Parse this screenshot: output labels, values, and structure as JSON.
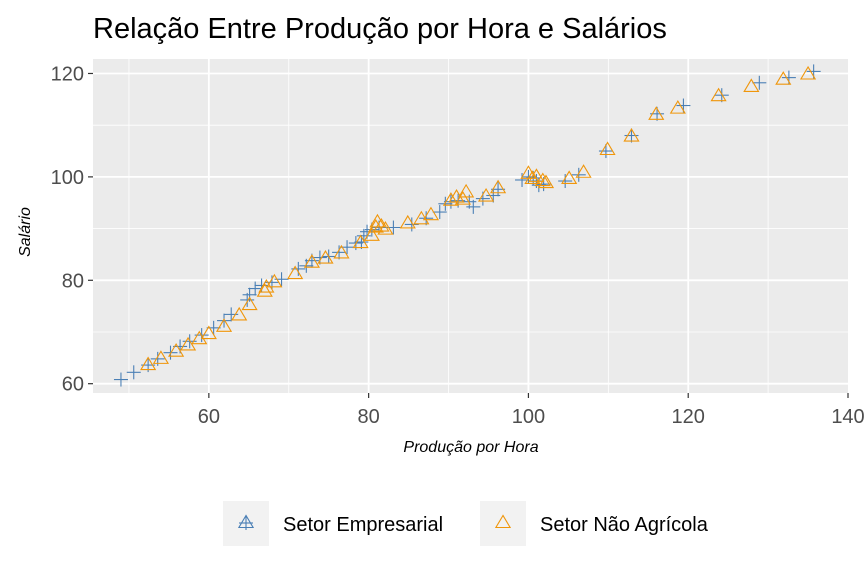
{
  "chart_data": {
    "type": "scatter",
    "title": "Relação Entre Produção por Hora e Salários",
    "xlabel": "Produção por Hora",
    "ylabel": "Salário",
    "xlim": [
      45.5,
      140
    ],
    "ylim": [
      58.2,
      122.8
    ],
    "xticks": [
      60,
      80,
      100,
      120,
      140
    ],
    "yticks": [
      60,
      80,
      100,
      120
    ],
    "grid": true,
    "legend_position": "bottom",
    "colors": {
      "panel": "#ebebeb",
      "grid": "#ffffff",
      "setor_empresarial": "#4a7fb5",
      "setor_nao_agricola": "#f0960a"
    },
    "series": [
      {
        "name": "Setor Empresarial",
        "marker": "plus",
        "points": [
          [
            49.0,
            60.8
          ],
          [
            50.6,
            62.2
          ],
          [
            52.4,
            63.6
          ],
          [
            53.6,
            64.8
          ],
          [
            55.2,
            66.0
          ],
          [
            56.4,
            67.2
          ],
          [
            57.6,
            68.2
          ],
          [
            59.1,
            69.4
          ],
          [
            60.6,
            70.8
          ],
          [
            61.9,
            72.2
          ],
          [
            62.8,
            73.4
          ],
          [
            64.8,
            76.2
          ],
          [
            65.1,
            77.2
          ],
          [
            65.8,
            78.4
          ],
          [
            66.6,
            79.0
          ],
          [
            67.9,
            79.6
          ],
          [
            69.1,
            80.2
          ],
          [
            71.2,
            82.2
          ],
          [
            72.2,
            82.8
          ],
          [
            72.9,
            83.8
          ],
          [
            73.9,
            84.4
          ],
          [
            75.0,
            84.6
          ],
          [
            76.3,
            85.4
          ],
          [
            77.3,
            86.4
          ],
          [
            78.4,
            87.2
          ],
          [
            79.1,
            87.4
          ],
          [
            79.4,
            88.6
          ],
          [
            79.8,
            89.4
          ],
          [
            80.4,
            89.8
          ],
          [
            81.3,
            90.2
          ],
          [
            83.1,
            90.2
          ],
          [
            85.4,
            90.8
          ],
          [
            87.2,
            92.0
          ],
          [
            88.9,
            93.2
          ],
          [
            89.6,
            94.8
          ],
          [
            90.3,
            95.2
          ],
          [
            91.2,
            95.4
          ],
          [
            92.6,
            95.2
          ],
          [
            93.1,
            94.2
          ],
          [
            94.3,
            95.8
          ],
          [
            95.6,
            96.4
          ],
          [
            96.2,
            97.6
          ],
          [
            99.2,
            99.4
          ],
          [
            100.0,
            100.0
          ],
          [
            100.6,
            99.8
          ],
          [
            101.0,
            99.2
          ],
          [
            101.3,
            98.4
          ],
          [
            101.9,
            98.6
          ],
          [
            104.6,
            99.2
          ],
          [
            106.3,
            100.4
          ],
          [
            109.7,
            105.0
          ],
          [
            112.9,
            108.0
          ],
          [
            116.1,
            112.2
          ],
          [
            119.4,
            113.8
          ],
          [
            124.2,
            115.8
          ],
          [
            128.9,
            118.2
          ],
          [
            132.6,
            119.2
          ],
          [
            135.7,
            120.4
          ]
        ]
      },
      {
        "name": "Setor Não Agrícola",
        "marker": "triangle",
        "points": [
          [
            52.4,
            63.6
          ],
          [
            54.0,
            64.8
          ],
          [
            55.9,
            66.2
          ],
          [
            57.4,
            67.4
          ],
          [
            58.8,
            68.6
          ],
          [
            60.0,
            69.6
          ],
          [
            61.9,
            71.0
          ],
          [
            63.8,
            73.2
          ],
          [
            65.1,
            75.2
          ],
          [
            67.0,
            77.8
          ],
          [
            67.2,
            78.6
          ],
          [
            68.2,
            79.6
          ],
          [
            70.8,
            81.2
          ],
          [
            72.9,
            83.4
          ],
          [
            74.6,
            84.2
          ],
          [
            76.6,
            85.2
          ],
          [
            79.0,
            87.2
          ],
          [
            80.4,
            88.6
          ],
          [
            80.9,
            90.2
          ],
          [
            81.1,
            91.2
          ],
          [
            81.6,
            90.4
          ],
          [
            82.1,
            89.8
          ],
          [
            84.9,
            91.0
          ],
          [
            86.6,
            91.8
          ],
          [
            87.8,
            92.6
          ],
          [
            90.3,
            95.4
          ],
          [
            91.0,
            96.0
          ],
          [
            91.8,
            95.6
          ],
          [
            92.2,
            97.0
          ],
          [
            94.7,
            96.2
          ],
          [
            96.2,
            97.8
          ],
          [
            100.0,
            100.6
          ],
          [
            100.5,
            99.6
          ],
          [
            101.0,
            100.0
          ],
          [
            101.8,
            99.2
          ],
          [
            102.2,
            98.8
          ],
          [
            105.1,
            99.6
          ],
          [
            106.9,
            100.8
          ],
          [
            109.9,
            105.2
          ],
          [
            112.9,
            107.8
          ],
          [
            116.0,
            112.0
          ],
          [
            118.7,
            113.2
          ],
          [
            123.8,
            115.6
          ],
          [
            127.9,
            117.4
          ],
          [
            131.9,
            118.8
          ],
          [
            135.0,
            119.8
          ]
        ]
      }
    ]
  },
  "legend": {
    "items": [
      {
        "label": "Setor Empresarial",
        "marker": "plus",
        "color": "#4a7fb5"
      },
      {
        "label": "Setor Não Agrícola",
        "marker": "triangle",
        "color": "#f0960a"
      }
    ]
  }
}
